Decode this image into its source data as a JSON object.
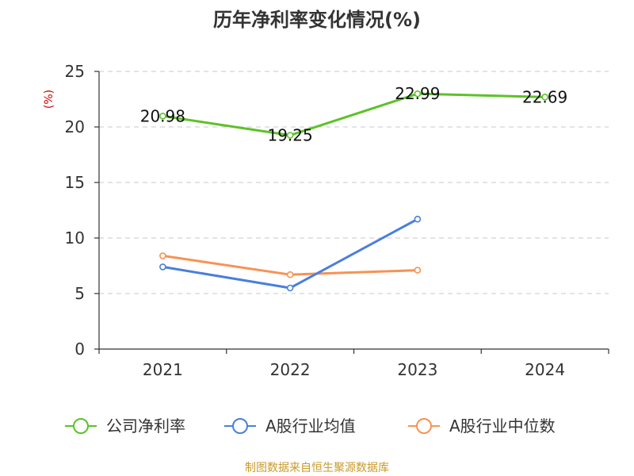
{
  "chart_data": {
    "type": "line",
    "title": "历年净利率变化情况(%)",
    "ylabel": "(%)",
    "xlabel": "",
    "categories": [
      "2021",
      "2022",
      "2023",
      "2024"
    ],
    "ylim": [
      0,
      25
    ],
    "yticks": [
      0,
      5,
      10,
      15,
      20,
      25
    ],
    "grid": true,
    "legend_position": "bottom",
    "series": [
      {
        "name": "公司净利率",
        "color": "#5cc228",
        "values": [
          20.98,
          19.25,
          22.99,
          22.69
        ],
        "labels": [
          "20.98",
          "19.25",
          "22.99",
          "22.69"
        ]
      },
      {
        "name": "A股行业均值",
        "color": "#4a7fdc",
        "values": [
          7.4,
          5.5,
          11.7,
          null
        ]
      },
      {
        "name": "A股行业中位数",
        "color": "#f79255",
        "values": [
          8.4,
          6.7,
          7.1,
          null
        ]
      }
    ]
  },
  "source": "制图数据来自恒生聚源数据库"
}
